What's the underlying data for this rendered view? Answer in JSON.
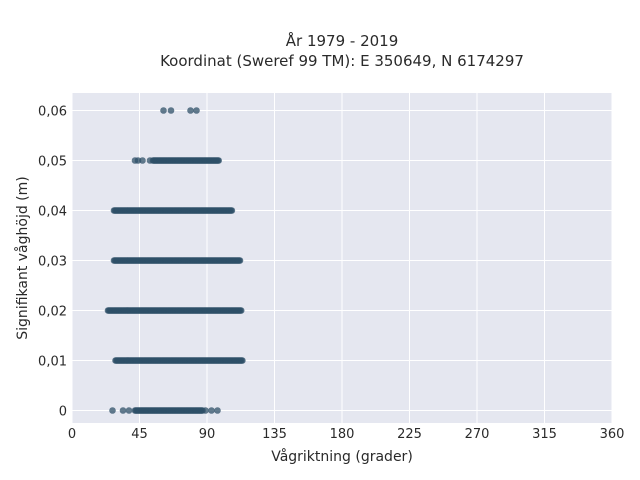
{
  "chart_data": {
    "type": "scatter",
    "title_lines": [
      "År 1979 - 2019",
      "Koordinat (Sweref 99 TM): E 350649, N 6174297"
    ],
    "xlabel": "Vågriktning (grader)",
    "ylabel": "Signifikant våghöjd (m)",
    "xlim": [
      0,
      360
    ],
    "ylim": [
      -0.0025,
      0.0635
    ],
    "xticks": [
      0,
      45,
      90,
      135,
      180,
      225,
      270,
      315,
      360
    ],
    "xtick_labels": [
      "0",
      "45",
      "90",
      "135",
      "180",
      "225",
      "270",
      "315",
      "360"
    ],
    "yticks": [
      0,
      0.01,
      0.02,
      0.03,
      0.04,
      0.05,
      0.06
    ],
    "ytick_labels": [
      "0",
      "0,01",
      "0,02",
      "0,03",
      "0,04",
      "0,05",
      "0,06"
    ],
    "grid": true,
    "colors": {
      "background": "#e5e7f0",
      "grid": "#ffffff",
      "marker": "#2f5068"
    },
    "bands": [
      {
        "y": 0.0,
        "x_min": 42,
        "x_max": 87,
        "outliers": [
          27,
          34,
          38,
          89,
          93,
          97
        ]
      },
      {
        "y": 0.01,
        "x_min": 29,
        "x_max": 114,
        "outliers": []
      },
      {
        "y": 0.02,
        "x_min": 24,
        "x_max": 113,
        "outliers": []
      },
      {
        "y": 0.03,
        "x_min": 28,
        "x_max": 112,
        "outliers": []
      },
      {
        "y": 0.04,
        "x_min": 28,
        "x_max": 107,
        "outliers": []
      },
      {
        "y": 0.05,
        "x_min": 54,
        "x_max": 98,
        "outliers": [
          42,
          44,
          47,
          52
        ]
      },
      {
        "y": 0.06,
        "x_min": null,
        "x_max": null,
        "outliers": [
          61,
          66,
          79,
          83
        ]
      }
    ]
  }
}
